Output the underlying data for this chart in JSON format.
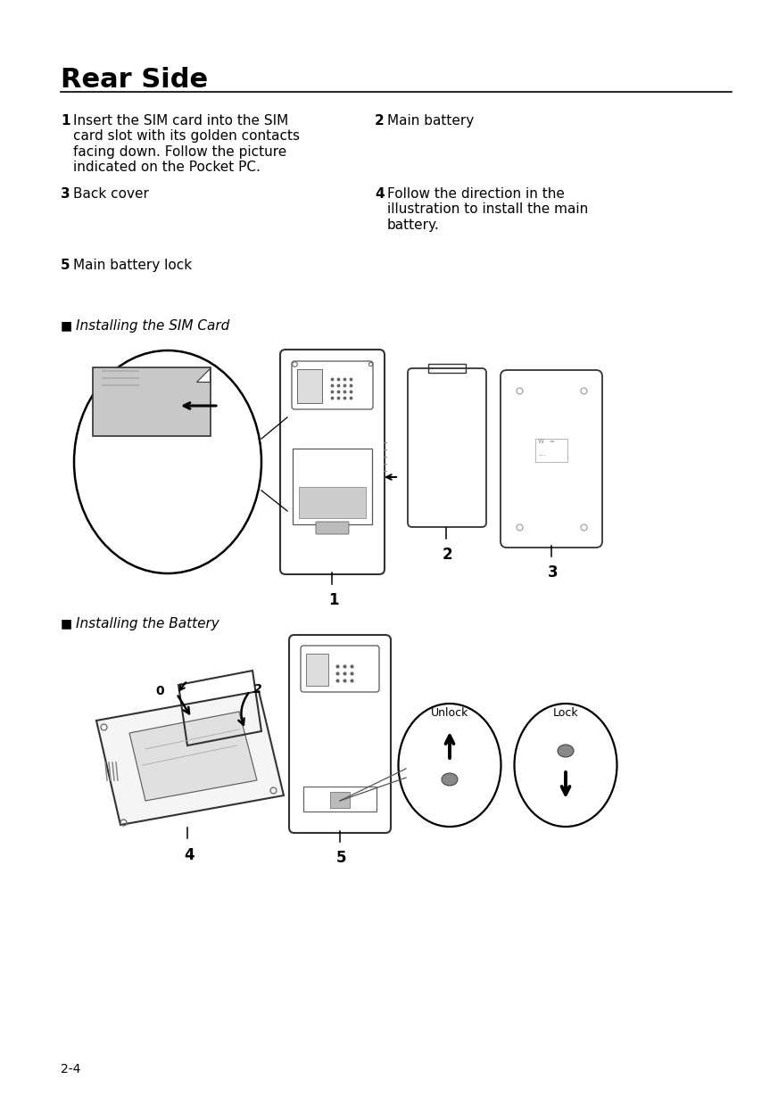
{
  "title": "Rear Side",
  "page_num": "2-4",
  "bg_color": "#ffffff",
  "text_color": "#000000",
  "title_fontsize": 22,
  "body_fontsize": 11,
  "section1": "Installing the SIM Card",
  "section2": "Installing the Battery"
}
